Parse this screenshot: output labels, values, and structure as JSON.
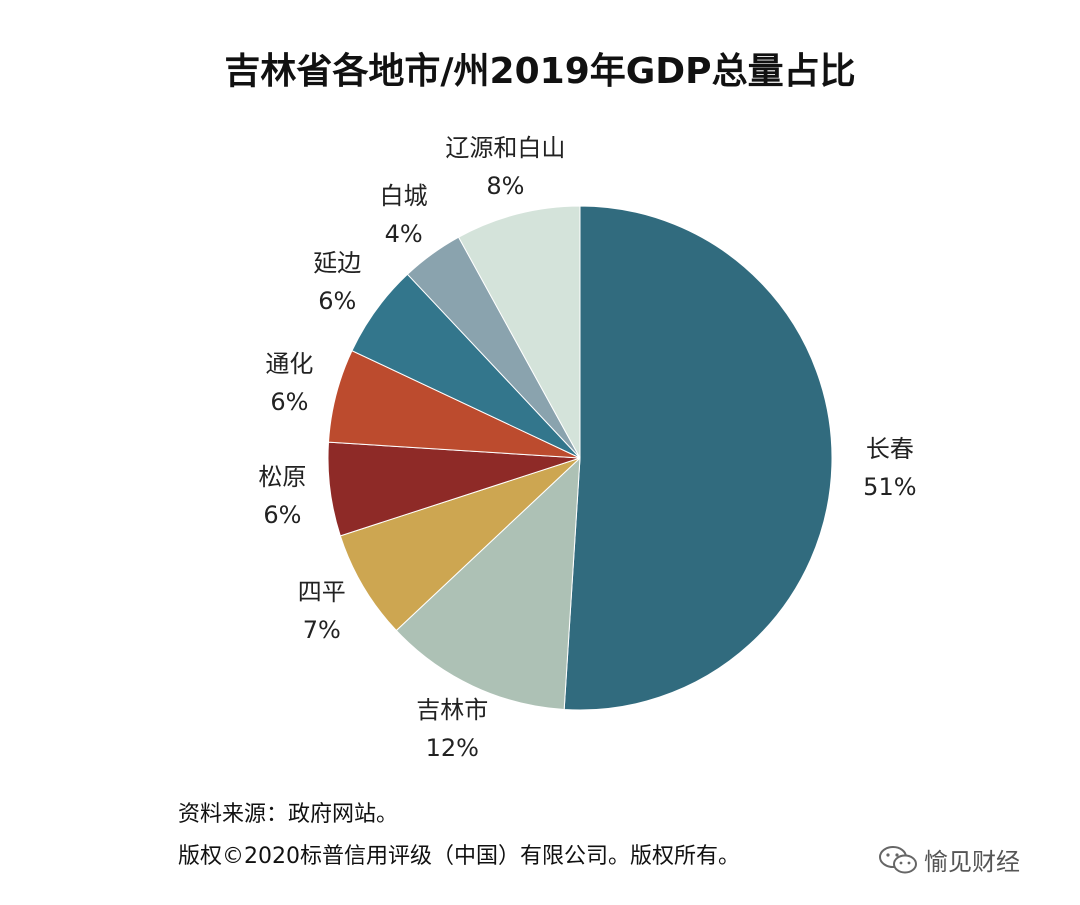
{
  "chart_data": {
    "type": "pie",
    "title": "吉林省各地市/州2019年GDP总量占比",
    "slices": [
      {
        "name": "长春",
        "value": 51,
        "label": "51%",
        "color": "#316B7E"
      },
      {
        "name": "吉林市",
        "value": 12,
        "label": "12%",
        "color": "#ADC1B5"
      },
      {
        "name": "四平",
        "value": 7,
        "label": "7%",
        "color": "#CDA651"
      },
      {
        "name": "松原",
        "value": 6,
        "label": "6%",
        "color": "#8E2A27"
      },
      {
        "name": "通化",
        "value": 6,
        "label": "6%",
        "color": "#BC4B2E"
      },
      {
        "name": "延边",
        "value": 6,
        "label": "6%",
        "color": "#33768C"
      },
      {
        "name": "白城",
        "value": 4,
        "label": "4%",
        "color": "#8AA3AE"
      },
      {
        "name": "辽源和白山",
        "value": 8,
        "label": "8%",
        "color": "#D4E3DA"
      }
    ]
  },
  "footer": {
    "source": "资料来源：政府网站。",
    "copyright": "版权©2020标普信用评级（中国）有限公司。版权所有。"
  },
  "watermark": {
    "text": "愉见财经",
    "icon": "wechat-icon"
  }
}
